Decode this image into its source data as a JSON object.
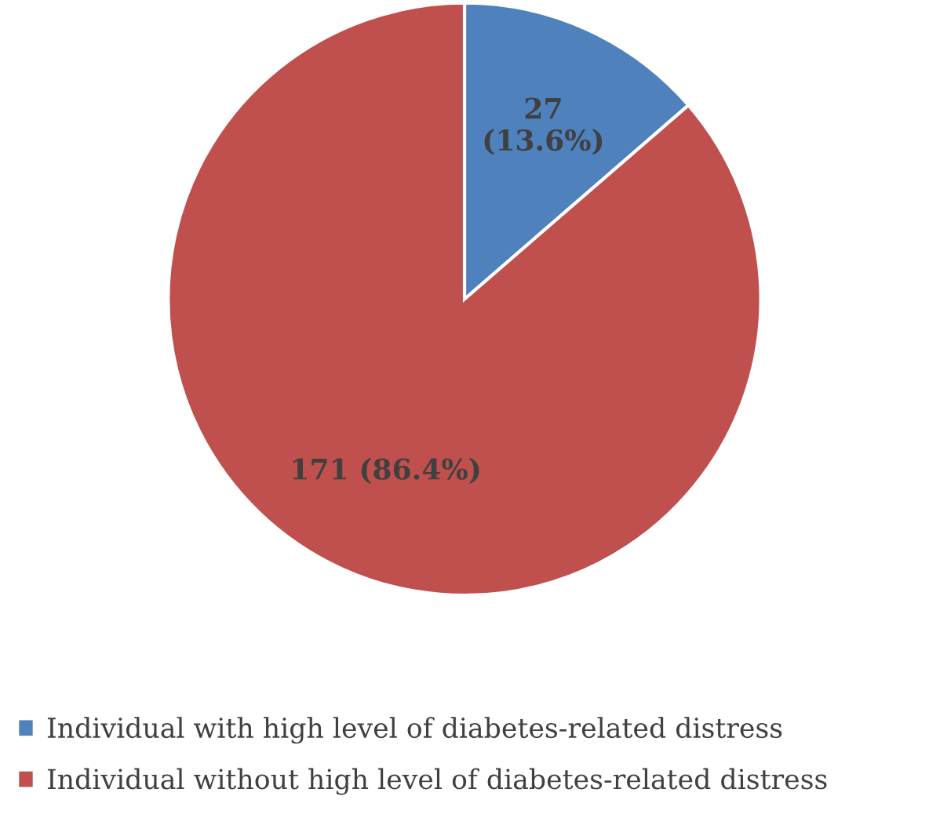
{
  "chart_data": {
    "type": "pie",
    "categories": [
      "Individual with high level of diabetes-related distress",
      "Individual without high level of diabetes-related distress"
    ],
    "values": [
      27,
      171
    ],
    "colors": [
      "#4f81bd",
      "#c0504d"
    ],
    "value_labels": [
      "27\n(13.6%)",
      "171 (86.4%)"
    ],
    "legend": "bottom"
  }
}
